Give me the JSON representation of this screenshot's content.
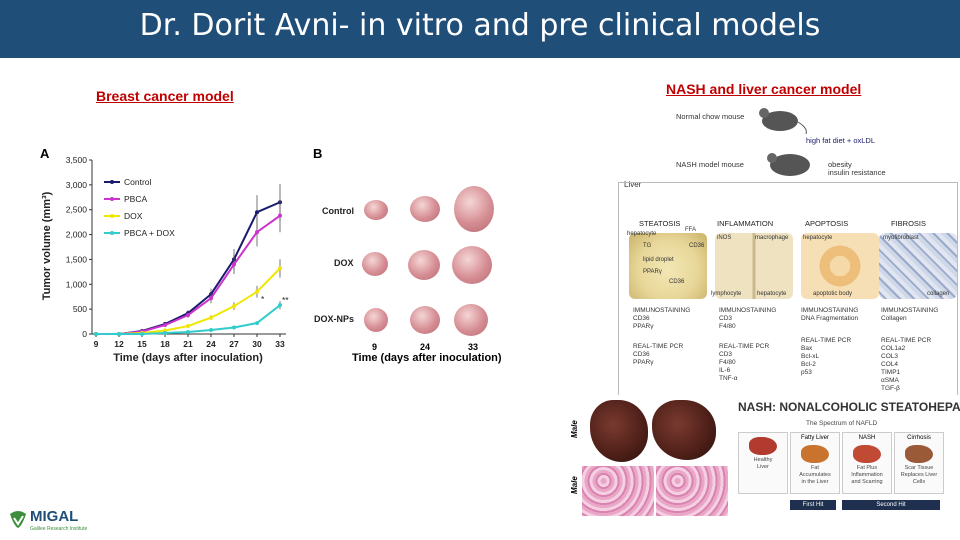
{
  "title": "Dr. Dorit Avni- in vitro and pre clinical models",
  "left_heading": "Breast cancer model",
  "right_heading": "NASH and liver cancer model",
  "chart_data": {
    "type": "line",
    "panel_label": "A",
    "xlabel": "Time (days after inoculation)",
    "ylabel": "Tumor volume (mm³)",
    "x": [
      9,
      12,
      15,
      18,
      21,
      24,
      27,
      30,
      33
    ],
    "yticks": [
      "0",
      "500",
      "1,000",
      "1,500",
      "2,000",
      "2,500",
      "3,000",
      "3,500"
    ],
    "ylim": [
      0,
      3500
    ],
    "series": [
      {
        "name": "Control",
        "color": "#1a1a6e",
        "values": [
          0,
          0,
          60,
          200,
          420,
          800,
          1500,
          2450,
          2650
        ]
      },
      {
        "name": "PBCA",
        "color": "#cc33cc",
        "values": [
          0,
          0,
          50,
          180,
          380,
          720,
          1400,
          2050,
          2380
        ]
      },
      {
        "name": "DOX",
        "color": "#f2e600",
        "values": [
          0,
          0,
          20,
          70,
          160,
          330,
          560,
          850,
          1320
        ]
      },
      {
        "name": "PBCA + DOX",
        "color": "#33cccc",
        "values": [
          0,
          0,
          0,
          20,
          40,
          80,
          130,
          220,
          580
        ]
      }
    ],
    "annotations": [
      "*",
      "**"
    ]
  },
  "panel_b": {
    "label": "B",
    "rows": [
      "Control",
      "DOX",
      "DOX-NPs"
    ],
    "xticks": [
      "9",
      "24",
      "33"
    ],
    "xlabel": "Time (days after inoculation)"
  },
  "nash": {
    "normal_mouse": "Normal chow mouse",
    "diet": "high fat diet + oxLDL",
    "nash_mouse": "NASH model mouse",
    "obesity": "obesity",
    "insulin": "insulin resistance",
    "liver": "Liver",
    "columns": [
      {
        "head": "STEATOSIS",
        "cells": [
          "hepatocyte",
          "FFA",
          "TG",
          "CD36",
          "lipid droplet",
          "PPARγ",
          "CD36"
        ],
        "immuno": "IMMUNOSTAINING\nCD36\nPPARγ",
        "pcr": "REAL-TIME PCR\nCD36\nPPARγ"
      },
      {
        "head": "INFLAMMATION",
        "cells": [
          "iNOS",
          "macrophage",
          "lymphocyte",
          "hepatocyte"
        ],
        "immuno": "IMMUNOSTAINING\nCD3\nF4/80",
        "pcr": "REAL-TIME PCR\nCD3\nF4/80\nIL-6\nTNF-α"
      },
      {
        "head": "APOPTOSIS",
        "cells": [
          "hepatocyte",
          "apoptotic body"
        ],
        "immuno": "IMMUNOSTAINING\nDNA Fragmentation",
        "pcr": "REAL-TIME PCR\nBax\nBcl-xL\nBcl-2\np53"
      },
      {
        "head": "FIBROSIS",
        "cells": [
          "myofibroblast",
          "collagen"
        ],
        "immuno": "IMMUNOSTAINING\nCollagen",
        "pcr": "REAL-TIME PCR\nCOL1a2\nCOL3\nCOL4\nTIMP1\nαSMA\nTGF-β"
      }
    ]
  },
  "nafld": {
    "title": "NASH: NONALCOHOLIC STEATOHEPATITIS",
    "subtitle": "The Spectrum of NAFLD",
    "side_labels": [
      "Male",
      "Male"
    ],
    "cards": [
      {
        "label": "Healthy Liver",
        "color": "#b23a2e",
        "desc": "Healthy\nLiver"
      },
      {
        "label": "Fatty Liver",
        "color": "#c8742f",
        "desc": "Fat\nAccumulates\nin the Liver"
      },
      {
        "label": "NASH",
        "color": "#c04a33",
        "desc": "Fat Plus\nInflammation\nand Scarring"
      },
      {
        "label": "Cirrhosis",
        "color": "#9a5a38",
        "desc": "Scar Tissue\nReplaces Liver\nCells"
      }
    ],
    "hits": [
      "First Hit",
      "Second Hit"
    ]
  },
  "logo": {
    "name": "MIGAL",
    "tagline": "Galilee Research Institute"
  }
}
